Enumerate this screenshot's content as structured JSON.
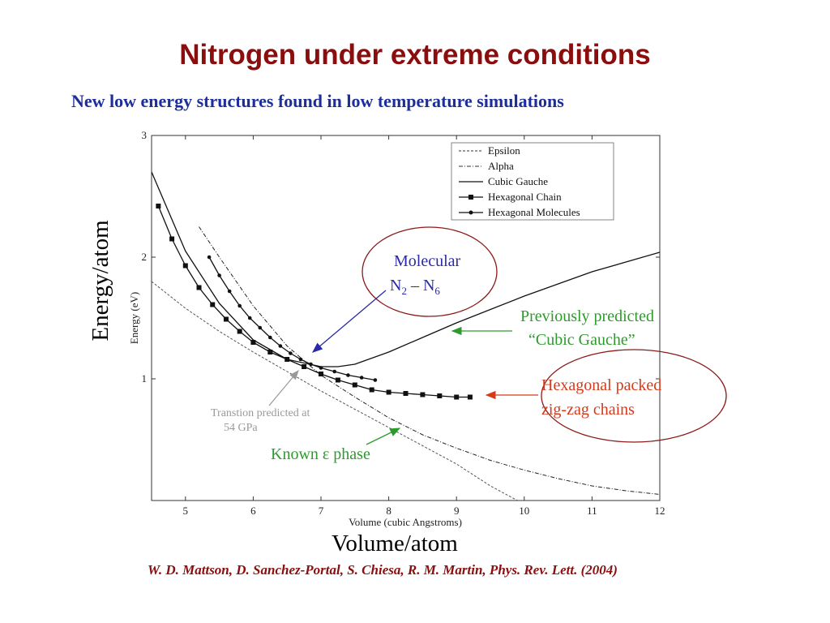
{
  "slide": {
    "title": "Nitrogen under extreme conditions",
    "subtitle": "New low energy structures found in low temperature simulations",
    "citation": "W. D. Mattson, D. Sanchez-Portal, S. Chiesa, R. M. Martin, Phys. Rev. Lett. (2004)",
    "big_ylabel": "Energy/atom",
    "big_xlabel": "Volume/atom"
  },
  "colors": {
    "title": "#8b0e0e",
    "subtitle": "#1c2e9a",
    "molecular": "#2a2aa8",
    "green": "#2e9a2e",
    "red": "#d63a1a",
    "ellipse": "#8b1a1a"
  },
  "annotations": {
    "molecular_line1": "Molecular",
    "molecular_line2_main": "N",
    "molecular_sub1": "2",
    "molecular_dash": " – N",
    "molecular_sub2": "6",
    "cubic_gauche_line1": "Previously predicted",
    "cubic_gauche_line2": "“Cubic Gauche”",
    "hex_chain_line1": "Hexagonal packed",
    "hex_chain_line2": "zig-zag chains",
    "known_phase": "Known ε phase",
    "transition_line1": "Transtion predicted at",
    "transition_line2": "54 GPa"
  },
  "chart_data": {
    "type": "line",
    "xlabel": "Volume (cubic Angstroms)",
    "ylabel": "Energy (eV)",
    "xlim": [
      4.5,
      12
    ],
    "ylim": [
      0,
      3
    ],
    "xticks": [
      5,
      6,
      7,
      8,
      9,
      10,
      11,
      12
    ],
    "yticks": [
      1,
      2,
      3
    ],
    "legend_position": "top-right",
    "series": [
      {
        "name": "Epsilon",
        "style": "dashed",
        "x": [
          4.5,
          5,
          5.5,
          6,
          6.5,
          7,
          7.5,
          8,
          8.5,
          9,
          9.5,
          9.9
        ],
        "y": [
          1.8,
          1.58,
          1.39,
          1.22,
          1.06,
          0.9,
          0.75,
          0.6,
          0.45,
          0.3,
          0.12,
          0.0
        ]
      },
      {
        "name": "Alpha",
        "style": "dash-dot",
        "x": [
          5.2,
          5.5,
          6,
          6.5,
          7,
          7.5,
          8,
          8.5,
          9,
          9.5,
          10,
          10.5,
          11,
          11.5,
          12
        ],
        "y": [
          2.25,
          2.0,
          1.6,
          1.27,
          1.03,
          0.85,
          0.68,
          0.54,
          0.43,
          0.33,
          0.25,
          0.18,
          0.12,
          0.08,
          0.05
        ]
      },
      {
        "name": "Cubic Gauche",
        "style": "solid",
        "x": [
          4.5,
          5,
          5.5,
          6,
          6.5,
          7,
          7.25,
          7.5,
          8,
          8.5,
          9,
          9.5,
          10,
          10.5,
          11,
          11.5,
          12
        ],
        "y": [
          2.7,
          2.05,
          1.62,
          1.32,
          1.16,
          1.1,
          1.1,
          1.12,
          1.22,
          1.34,
          1.46,
          1.57,
          1.68,
          1.78,
          1.88,
          1.96,
          2.04
        ]
      },
      {
        "name": "Hexagonal Chain",
        "style": "solid-square",
        "x": [
          4.6,
          4.8,
          5.0,
          5.2,
          5.4,
          5.6,
          5.8,
          6.0,
          6.25,
          6.5,
          6.75,
          7.0,
          7.25,
          7.5,
          7.75,
          8.0,
          8.25,
          8.5,
          8.75,
          9.0,
          9.2
        ],
        "y": [
          2.42,
          2.15,
          1.93,
          1.75,
          1.61,
          1.49,
          1.39,
          1.3,
          1.22,
          1.16,
          1.1,
          1.04,
          0.99,
          0.95,
          0.91,
          0.89,
          0.88,
          0.87,
          0.86,
          0.85,
          0.85
        ]
      },
      {
        "name": "Hexagonal Molecules",
        "style": "solid-circle",
        "x": [
          5.35,
          5.5,
          5.65,
          5.8,
          5.95,
          6.1,
          6.25,
          6.4,
          6.55,
          6.7,
          6.85,
          7.0,
          7.2,
          7.4,
          7.6,
          7.8
        ],
        "y": [
          2.0,
          1.85,
          1.72,
          1.6,
          1.5,
          1.42,
          1.34,
          1.27,
          1.21,
          1.16,
          1.12,
          1.09,
          1.06,
          1.03,
          1.01,
          0.99
        ]
      }
    ]
  }
}
